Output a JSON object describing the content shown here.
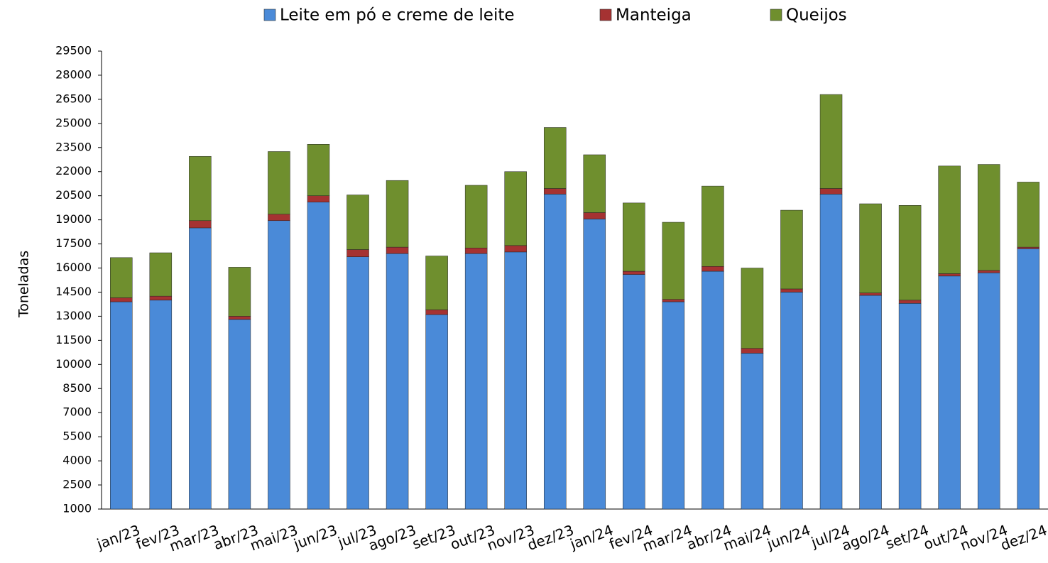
{
  "chart_data": {
    "type": "bar",
    "stacked": true,
    "y_label": "Toneladas",
    "categories": [
      "jan/23",
      "fev/23",
      "mar/23",
      "abr/23",
      "mai/23",
      "jun/23",
      "jul/23",
      "ago/23",
      "set/23",
      "out/23",
      "nov/23",
      "dez/23",
      "jan/24",
      "fev/24",
      "mar/24",
      "abr/24",
      "mai/24",
      "jun/24",
      "jul/24",
      "ago/24",
      "set/24",
      "out/24",
      "nov/24",
      "dez/24"
    ],
    "series": [
      {
        "name": "Leite em pó e creme de leite",
        "color": "#4a8ad8",
        "values": [
          13900,
          14000,
          18500,
          12800,
          18950,
          20100,
          16700,
          16900,
          13100,
          16900,
          17000,
          20600,
          19050,
          15600,
          13900,
          15800,
          10700,
          14500,
          20600,
          14300,
          13800,
          15500,
          15700,
          17200
        ]
      },
      {
        "name": "Manteiga",
        "color": "#a53232",
        "values": [
          250,
          250,
          450,
          200,
          400,
          400,
          450,
          400,
          300,
          350,
          400,
          350,
          400,
          200,
          150,
          300,
          300,
          200,
          350,
          150,
          200,
          150,
          150,
          100
        ]
      },
      {
        "name": "Queijos",
        "color": "#6f8f2e",
        "values": [
          2500,
          2700,
          4000,
          3050,
          3900,
          3200,
          3400,
          4150,
          3350,
          3900,
          4600,
          3800,
          3600,
          4250,
          4800,
          5000,
          5000,
          4900,
          5850,
          5550,
          5900,
          6700,
          6600,
          4050
        ]
      }
    ],
    "ylim": [
      1000,
      29500
    ],
    "yticks": [
      1000,
      2500,
      4000,
      5500,
      7000,
      8500,
      10000,
      11500,
      13000,
      14500,
      16000,
      17500,
      19000,
      20500,
      22000,
      23500,
      25000,
      26500,
      28000,
      29500
    ],
    "legend": "top",
    "grid": false
  }
}
